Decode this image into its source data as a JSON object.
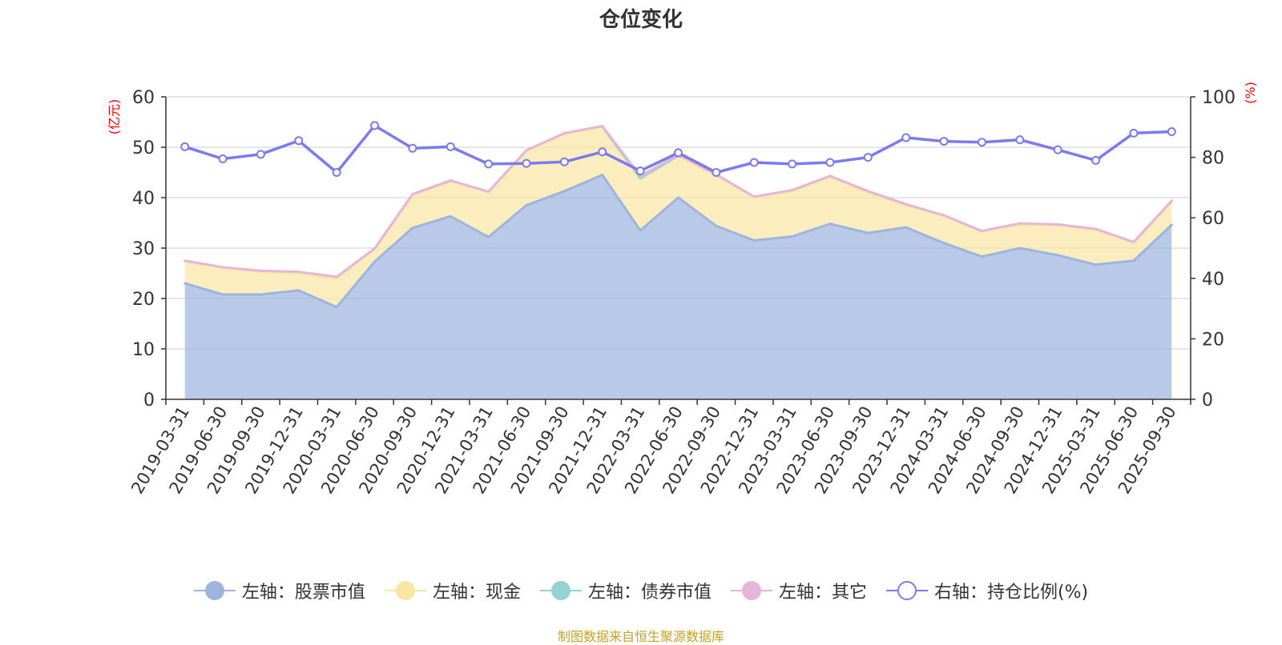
{
  "chart_data": {
    "type": "area",
    "title": "仓位变化",
    "ylabel_left": "(亿元)",
    "ylabel_right": "(%)",
    "ylim_left": [
      0,
      60
    ],
    "ylim_right": [
      0,
      100
    ],
    "yticks_left": [
      0,
      10,
      20,
      30,
      40,
      50,
      60
    ],
    "yticks_right": [
      0,
      20,
      40,
      60,
      80,
      100
    ],
    "categories": [
      "2019-03-31",
      "2019-06-30",
      "2019-09-30",
      "2019-12-31",
      "2020-03-31",
      "2020-06-30",
      "2020-09-30",
      "2020-12-31",
      "2021-03-31",
      "2021-06-30",
      "2021-09-30",
      "2021-12-31",
      "2022-03-31",
      "2022-06-30",
      "2022-09-30",
      "2022-12-31",
      "2023-03-31",
      "2023-06-30",
      "2023-09-30",
      "2023-12-31",
      "2024-03-31",
      "2024-06-30",
      "2024-09-30",
      "2024-12-31",
      "2025-03-31",
      "2025-06-30",
      "2025-09-30"
    ],
    "series": [
      {
        "name": "左轴：股票市值",
        "axis": "left",
        "color": "#9db5de",
        "values": [
          23.0,
          20.8,
          20.8,
          21.6,
          18.3,
          27.3,
          34.0,
          36.3,
          32.2,
          38.5,
          41.3,
          44.5,
          33.5,
          40.0,
          34.4,
          31.5,
          32.3,
          34.8,
          33.0,
          34.1,
          31.0,
          28.3,
          30.0,
          28.6,
          26.7,
          27.5,
          34.6
        ]
      },
      {
        "name": "左轴：现金",
        "axis": "left",
        "color": "#f9e6a4",
        "values": [
          4.4,
          5.3,
          4.5,
          3.4,
          5.6,
          2.5,
          6.5,
          6.9,
          8.9,
          10.8,
          11.3,
          9.6,
          10.1,
          8.3,
          10.0,
          8.5,
          9.0,
          9.3,
          8.0,
          4.4,
          5.3,
          5.0,
          4.7,
          5.9,
          6.9,
          3.6,
          4.6
        ]
      },
      {
        "name": "左轴：债券市值",
        "axis": "left",
        "color": "#93d3d3",
        "values": [
          0,
          0,
          0,
          0,
          0,
          0,
          0,
          0,
          0,
          0,
          0,
          0,
          0.3,
          0,
          0,
          0,
          0,
          0,
          0,
          0,
          0,
          0,
          0,
          0,
          0,
          0,
          0
        ]
      },
      {
        "name": "左轴：其它",
        "axis": "left",
        "color": "#e7b4db",
        "values": [
          0.1,
          0.1,
          0.2,
          0.3,
          0.4,
          0.1,
          0.2,
          0.2,
          0.1,
          0.1,
          0.2,
          0.1,
          0.4,
          0.2,
          0.2,
          0.2,
          0.2,
          0.2,
          0.3,
          0.2,
          0.2,
          0.1,
          0.2,
          0.2,
          0.2,
          0.1,
          0.2
        ]
      },
      {
        "name": "右轴：持仓比例(%)",
        "axis": "right",
        "color": "#7b7bef",
        "values": [
          83.5,
          79.5,
          81.0,
          85.5,
          75.0,
          90.5,
          83.0,
          83.5,
          77.8,
          78.0,
          78.5,
          81.8,
          75.5,
          81.5,
          75.0,
          78.3,
          77.8,
          78.3,
          80.0,
          86.5,
          85.3,
          85.0,
          85.8,
          82.5,
          79.0,
          88.0,
          88.5
        ]
      }
    ]
  },
  "footer": "制图数据来自恒生聚源数据库"
}
